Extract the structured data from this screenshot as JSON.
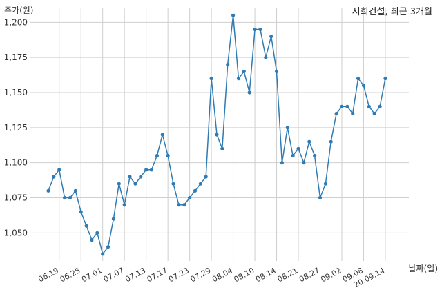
{
  "chart_data": {
    "type": "line",
    "title": "서희건설, 최근 3개월",
    "ylabel": "주가(원)",
    "xlabel": "날짜(일)",
    "ylim": [
      1030,
      1210
    ],
    "yticks": [
      1050,
      1075,
      1100,
      1125,
      1150,
      1175,
      1200
    ],
    "ytick_labels": [
      "1,050",
      "1,075",
      "1,100",
      "1,125",
      "1,150",
      "1,175",
      "1,200"
    ],
    "xtick_labels": [
      "06.19",
      "06.25",
      "07.01",
      "07.07",
      "07.13",
      "07.17",
      "07.23",
      "07.29",
      "08.04",
      "08.10",
      "08.14",
      "08.21",
      "08.27",
      "09.02",
      "09.08",
      "20.09.14"
    ],
    "xtick_index": [
      2,
      6,
      10,
      14,
      18,
      22,
      26,
      30,
      34,
      38,
      42,
      46,
      50,
      54,
      58,
      62
    ],
    "grid": true,
    "line_color": "#2f7bb3",
    "values": [
      1080,
      1090,
      1095,
      1075,
      1075,
      1080,
      1065,
      1055,
      1045,
      1050,
      1035,
      1040,
      1060,
      1085,
      1070,
      1090,
      1085,
      1090,
      1095,
      1095,
      1105,
      1120,
      1105,
      1085,
      1070,
      1070,
      1075,
      1080,
      1085,
      1090,
      1160,
      1120,
      1110,
      1170,
      1205,
      1160,
      1165,
      1150,
      1195,
      1195,
      1175,
      1190,
      1165,
      1100,
      1125,
      1105,
      1110,
      1100,
      1115,
      1105,
      1075,
      1085,
      1115,
      1135,
      1140,
      1140,
      1135,
      1160,
      1155,
      1140,
      1135,
      1140,
      1160
    ]
  }
}
